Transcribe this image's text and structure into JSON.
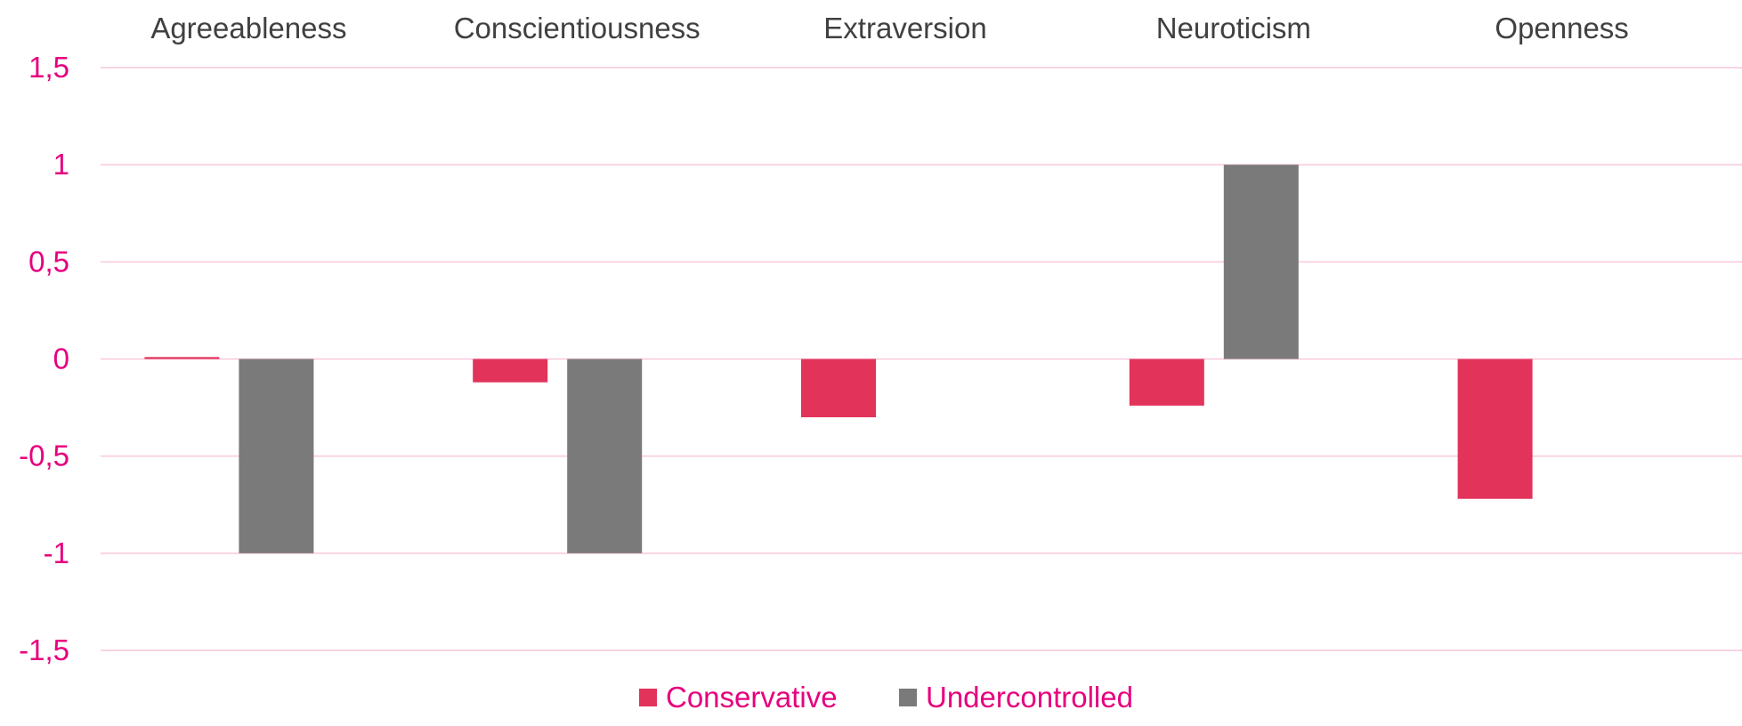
{
  "chart_data": {
    "type": "bar",
    "categories": [
      "Agreeableness",
      "Conscientiousness",
      "Extraversion",
      "Neuroticism",
      "Openness"
    ],
    "series": [
      {
        "name": "Conservative",
        "color": "#e2335a",
        "values": [
          0.01,
          -0.12,
          -0.3,
          -0.24,
          -0.72
        ]
      },
      {
        "name": "Undercontrolled",
        "color": "#7a7a7a",
        "values": [
          -1,
          -1,
          0,
          1,
          0
        ]
      }
    ],
    "yticks": [
      {
        "value": 1.5,
        "label": "1,5"
      },
      {
        "value": 1,
        "label": "1"
      },
      {
        "value": 0.5,
        "label": "0,5"
      },
      {
        "value": 0,
        "label": "0"
      },
      {
        "value": -0.5,
        "label": "-0,5"
      },
      {
        "value": -1,
        "label": "-1"
      },
      {
        "value": -1.5,
        "label": "-1,5"
      }
    ],
    "ylim": [
      -1.5,
      1.5
    ],
    "grid": true,
    "category_labels_position": "top",
    "legend_position": "bottom",
    "title": "",
    "xlabel": "",
    "ylabel": "",
    "colors": {
      "gridline": "#f9c7dc",
      "tick_text": "#e6007e",
      "legend_text": "#e6007e",
      "category_text": "#404040"
    }
  }
}
